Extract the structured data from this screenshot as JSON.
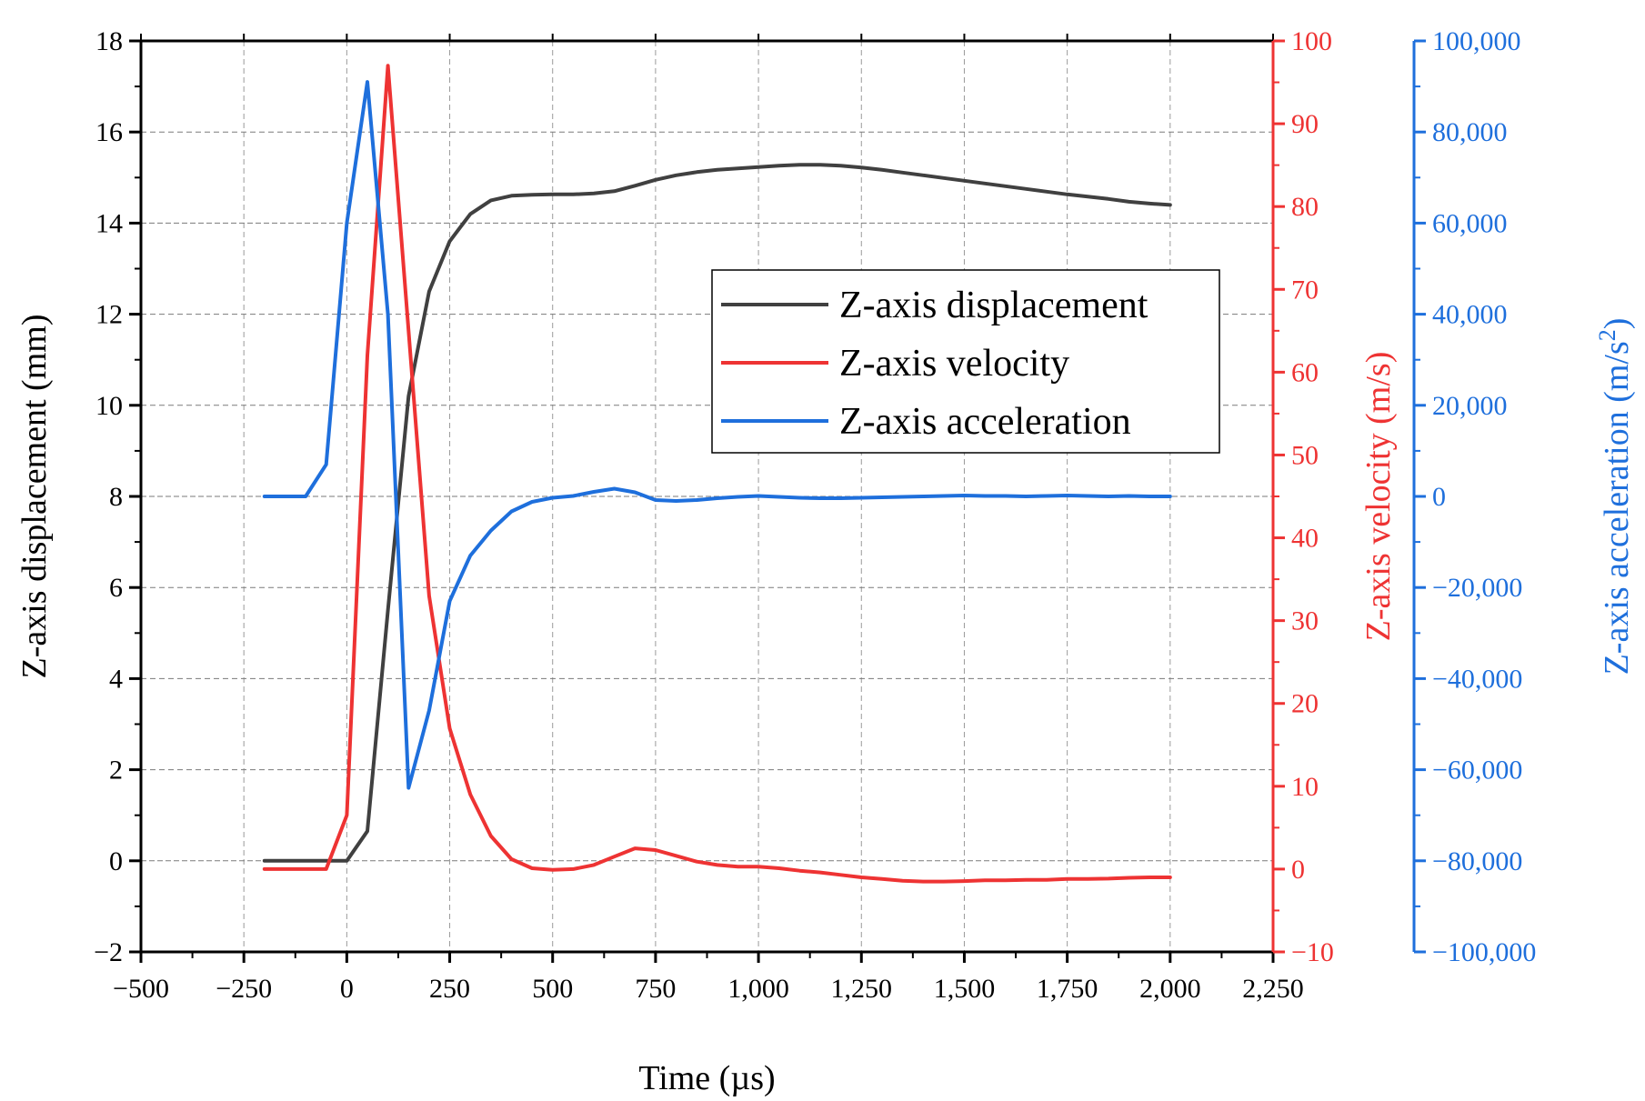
{
  "chart_data": {
    "type": "line",
    "xlabel": "Time (µs)",
    "x_axis": {
      "range": [
        -500,
        2250
      ],
      "ticks": [
        -500,
        -250,
        0,
        250,
        500,
        750,
        1000,
        1250,
        1500,
        1750,
        2000,
        2250
      ],
      "tick_labels": [
        "−500",
        "−250",
        "0",
        "250",
        "500",
        "750",
        "1,000",
        "1,250",
        "1,500",
        "1,750",
        "2,000",
        "2,250"
      ]
    },
    "y_axes": [
      {
        "id": "disp",
        "label": "Z-axis displacement (mm)",
        "color": "#000000",
        "range": [
          -2,
          18
        ],
        "ticks": [
          -2,
          0,
          2,
          4,
          6,
          8,
          10,
          12,
          14,
          16,
          18
        ],
        "tick_labels": [
          "−2",
          "0",
          "2",
          "4",
          "6",
          "8",
          "10",
          "12",
          "14",
          "16",
          "18"
        ]
      },
      {
        "id": "vel",
        "label": "Z-axis velocity (m/s)",
        "color": "#ee3333",
        "range": [
          -10,
          100
        ],
        "ticks": [
          -10,
          0,
          10,
          20,
          30,
          40,
          50,
          60,
          70,
          80,
          90,
          100
        ],
        "tick_labels": [
          "−10",
          "0",
          "10",
          "20",
          "30",
          "40",
          "50",
          "60",
          "70",
          "80",
          "90",
          "100"
        ]
      },
      {
        "id": "acc",
        "label_main": "Z-axis acceleration (m/s",
        "label_sup": "2",
        "label_end": ")",
        "color": "#1e6fdc",
        "range": [
          -100000,
          100000
        ],
        "ticks": [
          -100000,
          -80000,
          -60000,
          -40000,
          -20000,
          0,
          20000,
          40000,
          60000,
          80000,
          100000
        ],
        "tick_labels": [
          "−100,000",
          "−80,000",
          "−60,000",
          "−40,000",
          "−20,000",
          "0",
          "20,000",
          "40,000",
          "60,000",
          "80,000",
          "100,000"
        ]
      }
    ],
    "grid": true,
    "legend_position": "center-right",
    "series": [
      {
        "name": "Z-axis displacement",
        "axis": "disp",
        "color": "#404040",
        "x": [
          -200,
          -150,
          -100,
          -50,
          0,
          50,
          100,
          150,
          200,
          250,
          300,
          350,
          400,
          450,
          500,
          550,
          600,
          650,
          700,
          750,
          800,
          850,
          900,
          950,
          1000,
          1050,
          1100,
          1150,
          1200,
          1250,
          1300,
          1350,
          1400,
          1450,
          1500,
          1550,
          1600,
          1650,
          1700,
          1750,
          1800,
          1850,
          1900,
          1950,
          2000
        ],
        "values": [
          0,
          0,
          0,
          0,
          0,
          0.65,
          5.5,
          10.2,
          12.5,
          13.6,
          14.2,
          14.5,
          14.6,
          14.62,
          14.63,
          14.63,
          14.65,
          14.7,
          14.82,
          14.95,
          15.05,
          15.12,
          15.17,
          15.2,
          15.23,
          15.26,
          15.28,
          15.28,
          15.26,
          15.22,
          15.17,
          15.11,
          15.05,
          14.99,
          14.93,
          14.87,
          14.81,
          14.75,
          14.69,
          14.63,
          14.58,
          14.53,
          14.47,
          14.43,
          14.4
        ]
      },
      {
        "name": "Z-axis velocity",
        "axis": "vel",
        "color": "#ee3333",
        "x": [
          -200,
          -150,
          -100,
          -50,
          0,
          50,
          100,
          150,
          200,
          250,
          300,
          350,
          400,
          450,
          500,
          550,
          600,
          650,
          700,
          750,
          800,
          850,
          900,
          950,
          1000,
          1050,
          1100,
          1150,
          1200,
          1250,
          1300,
          1350,
          1400,
          1450,
          1500,
          1550,
          1600,
          1650,
          1700,
          1750,
          1800,
          1850,
          1900,
          1950,
          2000
        ],
        "values": [
          0,
          0,
          0,
          0,
          6.5,
          62,
          97,
          65,
          33,
          17,
          9,
          4,
          1.2,
          0.1,
          -0.1,
          0,
          0.5,
          1.5,
          2.5,
          2.3,
          1.6,
          0.9,
          0.5,
          0.3,
          0.3,
          0.1,
          -0.2,
          -0.4,
          -0.7,
          -1.0,
          -1.2,
          -1.4,
          -1.5,
          -1.5,
          -1.45,
          -1.35,
          -1.35,
          -1.3,
          -1.3,
          -1.2,
          -1.2,
          -1.15,
          -1.05,
          -1.0,
          -1.0
        ]
      },
      {
        "name": "Z-axis acceleration",
        "axis": "acc",
        "color": "#1e6fdc",
        "x": [
          -200,
          -150,
          -100,
          -50,
          0,
          50,
          100,
          150,
          200,
          250,
          300,
          350,
          400,
          450,
          500,
          550,
          600,
          650,
          700,
          750,
          800,
          850,
          900,
          950,
          1000,
          1050,
          1100,
          1150,
          1200,
          1250,
          1300,
          1350,
          1400,
          1450,
          1500,
          1550,
          1600,
          1650,
          1700,
          1750,
          1800,
          1850,
          1900,
          1950,
          2000
        ],
        "values": [
          0,
          0,
          0,
          7000,
          60000,
          91000,
          40000,
          -64000,
          -47000,
          -23000,
          -13000,
          -7500,
          -3300,
          -1200,
          -300,
          100,
          1000,
          1700,
          900,
          -800,
          -1000,
          -800,
          -400,
          -100,
          100,
          -100,
          -300,
          -400,
          -400,
          -300,
          -200,
          -100,
          0,
          100,
          200,
          100,
          100,
          0,
          100,
          200,
          100,
          0,
          100,
          0,
          0
        ]
      }
    ]
  }
}
